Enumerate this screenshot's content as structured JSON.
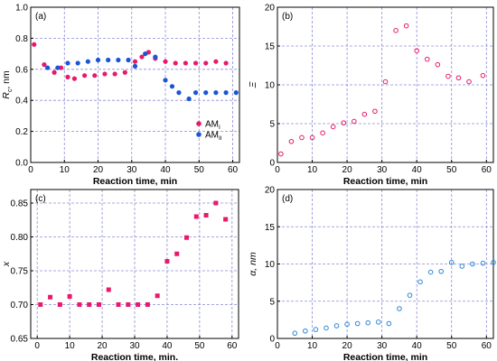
{
  "colors": {
    "pink": "#e8196a",
    "blue": "#1a55d6",
    "lightblue": "#2b87d8",
    "grid": "#8c8cd9"
  },
  "chart_data": [
    {
      "panel": "(a)",
      "type": "scatter",
      "xlabel": "Reaction time, min",
      "ylabel_main": "R",
      "ylabel_sub": "c",
      "ylabel_unit": ", nm",
      "xlim": [
        0,
        62
      ],
      "ylim": [
        0.0,
        1.0
      ],
      "xticks": [
        0,
        10,
        20,
        30,
        40,
        50,
        60
      ],
      "yticks": [
        0.0,
        0.2,
        0.4,
        0.6,
        0.8,
        1.0
      ],
      "ytick_labels": [
        "0.0",
        "0.2",
        "0.4",
        "0.6",
        "0.8",
        "1.0"
      ],
      "grid": true,
      "legend_position": "lower-right",
      "series": [
        {
          "name_main": "AM",
          "name_sub": "I",
          "color": "#e8196a",
          "marker": "filled-circle",
          "x": [
            1,
            4,
            7,
            9,
            11,
            13,
            16,
            19,
            22,
            25,
            28,
            31,
            33,
            35,
            37,
            40,
            43,
            46,
            49,
            52,
            55,
            58
          ],
          "y": [
            0.76,
            0.63,
            0.58,
            0.61,
            0.55,
            0.54,
            0.56,
            0.56,
            0.57,
            0.57,
            0.58,
            0.65,
            0.68,
            0.71,
            0.67,
            0.65,
            0.64,
            0.64,
            0.64,
            0.64,
            0.65,
            0.64
          ]
        },
        {
          "name_main": "AM",
          "name_sub": "II",
          "color": "#1a55d6",
          "marker": "filled-circle",
          "x": [
            5,
            8,
            11,
            14,
            17,
            20,
            23,
            26,
            29,
            31,
            34,
            37,
            40,
            42,
            44,
            47,
            49,
            52,
            55,
            58,
            61
          ],
          "y": [
            0.61,
            0.61,
            0.64,
            0.64,
            0.65,
            0.66,
            0.66,
            0.66,
            0.66,
            0.62,
            0.7,
            0.68,
            0.53,
            0.49,
            0.45,
            0.41,
            0.45,
            0.45,
            0.45,
            0.45,
            0.45
          ]
        }
      ]
    },
    {
      "panel": "(b)",
      "type": "scatter",
      "xlabel": "Reaction time, min",
      "ylabel": "Ξ",
      "xlim": [
        0,
        62
      ],
      "ylim": [
        0,
        20
      ],
      "xticks": [
        0,
        10,
        20,
        30,
        40,
        50,
        60
      ],
      "yticks": [
        0,
        5,
        10,
        15,
        20
      ],
      "ytick_labels": [
        "0",
        "5",
        "10",
        "15",
        "20"
      ],
      "grid": true,
      "series": [
        {
          "color": "#e8196a",
          "marker": "open-circle",
          "x": [
            1,
            4,
            7,
            10,
            13,
            16,
            19,
            22,
            25,
            28,
            31,
            34,
            37,
            40,
            43,
            46,
            49,
            52,
            55,
            59
          ],
          "y": [
            1.1,
            2.7,
            3.2,
            3.2,
            3.8,
            4.6,
            5.1,
            5.3,
            6.2,
            6.6,
            10.4,
            17.0,
            17.6,
            14.4,
            13.3,
            12.6,
            11.1,
            10.9,
            10.4,
            11.2
          ]
        }
      ]
    },
    {
      "panel": "(c)",
      "type": "scatter",
      "xlabel": "Reaction time, min.",
      "ylabel": "x",
      "xlim": [
        -2,
        62
      ],
      "ylim": [
        0.65,
        0.87
      ],
      "xticks": [
        0,
        10,
        20,
        30,
        40,
        50,
        60
      ],
      "yticks": [
        0.65,
        0.7,
        0.75,
        0.8,
        0.85
      ],
      "ytick_labels": [
        "0.65",
        "0.70",
        "0.75",
        "0.80",
        "0.85"
      ],
      "grid": true,
      "series": [
        {
          "color": "#e8196a",
          "marker": "filled-square",
          "x": [
            1,
            4,
            7,
            10,
            13,
            16,
            19,
            22,
            25,
            28,
            31,
            34,
            37,
            40,
            43,
            46,
            49,
            52,
            55,
            58
          ],
          "y": [
            0.7,
            0.711,
            0.7,
            0.712,
            0.7,
            0.7,
            0.7,
            0.722,
            0.7,
            0.7,
            0.7,
            0.7,
            0.713,
            0.764,
            0.775,
            0.799,
            0.83,
            0.832,
            0.85,
            0.826
          ]
        }
      ]
    },
    {
      "panel": "(d)",
      "type": "scatter",
      "xlabel": "Reaction time, min",
      "ylabel": "α, nm",
      "xlim": [
        0,
        62
      ],
      "ylim": [
        0,
        20
      ],
      "xticks": [
        0,
        10,
        20,
        30,
        40,
        50,
        60
      ],
      "yticks": [
        0,
        5,
        10,
        15,
        20
      ],
      "ytick_labels": [
        "0",
        "5",
        "10",
        "15",
        "20"
      ],
      "grid": true,
      "series": [
        {
          "color": "#2b87d8",
          "marker": "open-circle",
          "x": [
            5,
            8,
            11,
            14,
            17,
            20,
            23,
            26,
            29,
            32,
            35,
            38,
            41,
            44,
            47,
            50,
            53,
            56,
            59,
            62
          ],
          "y": [
            0.7,
            1.0,
            1.2,
            1.4,
            1.7,
            1.9,
            2.0,
            2.1,
            2.2,
            2.0,
            4.0,
            5.8,
            7.6,
            8.9,
            9.0,
            10.2,
            9.7,
            10.0,
            10.1,
            10.2
          ]
        }
      ]
    }
  ]
}
